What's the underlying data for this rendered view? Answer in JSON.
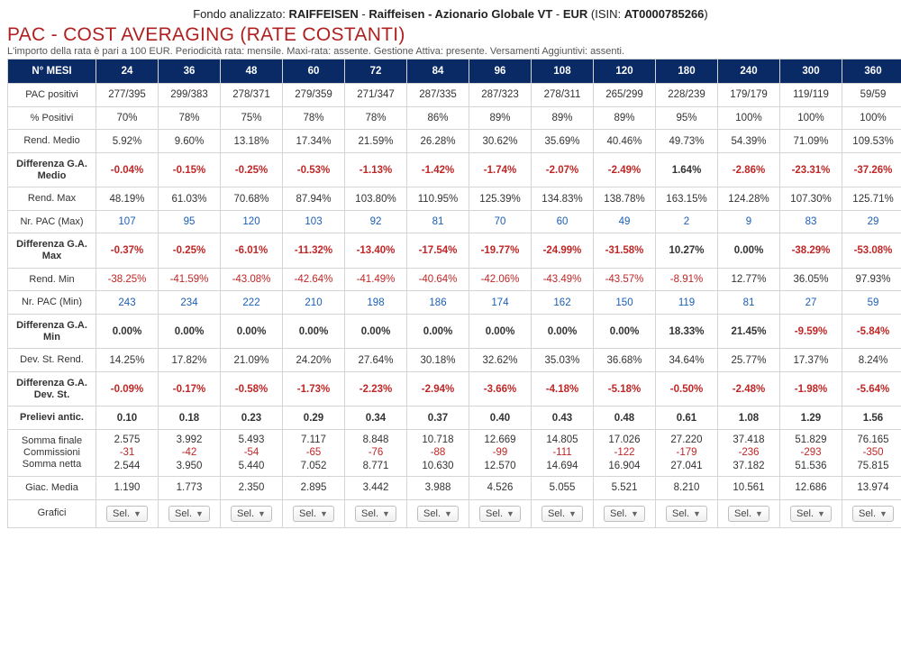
{
  "header": {
    "prefix": "Fondo analizzato: ",
    "brand": "RAIFFEISEN",
    "sep": " - ",
    "fund": "Raiffeisen - Azionario Globale VT",
    "ccy": "EUR",
    "isin_label": " (ISIN: ",
    "isin": "AT0000785266",
    "isin_close": ")"
  },
  "title": "PAC - COST AVERAGING (RATE COSTANTI)",
  "note": "L'importo della rata è pari a 100 EUR. Periodicità rata: mensile. Maxi-rata: assente. Gestione Attiva: presente. Versamenti Aggiuntivi: assenti.",
  "table": {
    "corner": "N° MESI",
    "months": [
      "24",
      "36",
      "48",
      "60",
      "72",
      "84",
      "96",
      "108",
      "120",
      "180",
      "240",
      "300",
      "360"
    ],
    "rows": [
      {
        "label": "PAC positivi",
        "bold": false,
        "cells": [
          "277/395",
          "299/383",
          "278/371",
          "279/359",
          "271/347",
          "287/335",
          "287/323",
          "278/311",
          "265/299",
          "228/239",
          "179/179",
          "119/119",
          "59/59"
        ]
      },
      {
        "label": "% Positivi",
        "bold": false,
        "cells": [
          "70%",
          "78%",
          "75%",
          "78%",
          "78%",
          "86%",
          "89%",
          "89%",
          "89%",
          "95%",
          "100%",
          "100%",
          "100%"
        ]
      },
      {
        "label": "Rend. Medio",
        "bold": false,
        "cells": [
          "5.92%",
          "9.60%",
          "13.18%",
          "17.34%",
          "21.59%",
          "26.28%",
          "30.62%",
          "35.69%",
          "40.46%",
          "49.73%",
          "54.39%",
          "71.09%",
          "109.53%"
        ]
      },
      {
        "label": "Differenza G.A. Medio",
        "bold": true,
        "boldCells": true,
        "cells": [
          "-0.04%",
          "-0.15%",
          "-0.25%",
          "-0.53%",
          "-1.13%",
          "-1.42%",
          "-1.74%",
          "-2.07%",
          "-2.49%",
          "1.64%",
          "-2.86%",
          "-23.31%",
          "-37.26%"
        ],
        "red": [
          true,
          true,
          true,
          true,
          true,
          true,
          true,
          true,
          true,
          false,
          true,
          true,
          true
        ]
      },
      {
        "label": "Rend. Max",
        "bold": false,
        "cells": [
          "48.19%",
          "61.03%",
          "70.68%",
          "87.94%",
          "103.80%",
          "110.95%",
          "125.39%",
          "134.83%",
          "138.78%",
          "163.15%",
          "124.28%",
          "107.30%",
          "125.71%"
        ]
      },
      {
        "label": "Nr. PAC (Max)",
        "bold": false,
        "link": true,
        "cells": [
          "107",
          "95",
          "120",
          "103",
          "92",
          "81",
          "70",
          "60",
          "49",
          "2",
          "9",
          "83",
          "29"
        ]
      },
      {
        "label": "Differenza G.A. Max",
        "bold": true,
        "boldCells": true,
        "cells": [
          "-0.37%",
          "-0.25%",
          "-6.01%",
          "-11.32%",
          "-13.40%",
          "-17.54%",
          "-19.77%",
          "-24.99%",
          "-31.58%",
          "10.27%",
          "0.00%",
          "-38.29%",
          "-53.08%"
        ],
        "red": [
          true,
          true,
          true,
          true,
          true,
          true,
          true,
          true,
          true,
          false,
          false,
          true,
          true
        ]
      },
      {
        "label": "Rend. Min",
        "bold": false,
        "cells": [
          "-38.25%",
          "-41.59%",
          "-43.08%",
          "-42.64%",
          "-41.49%",
          "-40.64%",
          "-42.06%",
          "-43.49%",
          "-43.57%",
          "-8.91%",
          "12.77%",
          "36.05%",
          "97.93%"
        ],
        "red": [
          true,
          true,
          true,
          true,
          true,
          true,
          true,
          true,
          true,
          true,
          false,
          false,
          false
        ]
      },
      {
        "label": "Nr. PAC (Min)",
        "bold": false,
        "link": true,
        "cells": [
          "243",
          "234",
          "222",
          "210",
          "198",
          "186",
          "174",
          "162",
          "150",
          "119",
          "81",
          "27",
          "59"
        ]
      },
      {
        "label": "Differenza G.A. Min",
        "bold": true,
        "boldCells": true,
        "cells": [
          "0.00%",
          "0.00%",
          "0.00%",
          "0.00%",
          "0.00%",
          "0.00%",
          "0.00%",
          "0.00%",
          "0.00%",
          "18.33%",
          "21.45%",
          "-9.59%",
          "-5.84%"
        ],
        "red": [
          false,
          false,
          false,
          false,
          false,
          false,
          false,
          false,
          false,
          false,
          false,
          true,
          true
        ]
      },
      {
        "label": "Dev. St. Rend.",
        "bold": false,
        "cells": [
          "14.25%",
          "17.82%",
          "21.09%",
          "24.20%",
          "27.64%",
          "30.18%",
          "32.62%",
          "35.03%",
          "36.68%",
          "34.64%",
          "25.77%",
          "17.37%",
          "8.24%"
        ]
      },
      {
        "label": "Differenza G.A. Dev. St.",
        "bold": true,
        "boldCells": true,
        "cells": [
          "-0.09%",
          "-0.17%",
          "-0.58%",
          "-1.73%",
          "-2.23%",
          "-2.94%",
          "-3.66%",
          "-4.18%",
          "-5.18%",
          "-0.50%",
          "-2.48%",
          "-1.98%",
          "-5.64%"
        ],
        "red": [
          true,
          true,
          true,
          true,
          true,
          true,
          true,
          true,
          true,
          true,
          true,
          true,
          true
        ]
      },
      {
        "label": "Prelievi antic.",
        "bold": true,
        "boldCells": true,
        "cells": [
          "0.10",
          "0.18",
          "0.23",
          "0.29",
          "0.34",
          "0.37",
          "0.40",
          "0.43",
          "0.48",
          "0.61",
          "1.08",
          "1.29",
          "1.56"
        ]
      },
      {
        "label": "Somma finale Commissioni Somma netta",
        "bold": false,
        "multi": true,
        "multiLabel": [
          "Somma finale",
          "Commissioni",
          "Somma netta"
        ],
        "cells": [
          [
            "2.575",
            "-31",
            "2.544"
          ],
          [
            "3.992",
            "-42",
            "3.950"
          ],
          [
            "5.493",
            "-54",
            "5.440"
          ],
          [
            "7.117",
            "-65",
            "7.052"
          ],
          [
            "8.848",
            "-76",
            "8.771"
          ],
          [
            "10.718",
            "-88",
            "10.630"
          ],
          [
            "12.669",
            "-99",
            "12.570"
          ],
          [
            "14.805",
            "-111",
            "14.694"
          ],
          [
            "17.026",
            "-122",
            "16.904"
          ],
          [
            "27.220",
            "-179",
            "27.041"
          ],
          [
            "37.418",
            "-236",
            "37.182"
          ],
          [
            "51.829",
            "-293",
            "51.536"
          ],
          [
            "76.165",
            "-350",
            "75.815"
          ]
        ]
      },
      {
        "label": "Giac. Media",
        "bold": false,
        "cells": [
          "1.190",
          "1.773",
          "2.350",
          "2.895",
          "3.442",
          "3.988",
          "4.526",
          "5.055",
          "5.521",
          "8.210",
          "10.561",
          "12.686",
          "13.974"
        ]
      },
      {
        "label": "Grafici",
        "bold": false,
        "buttons": true,
        "btnLabel": "Sel."
      }
    ]
  }
}
